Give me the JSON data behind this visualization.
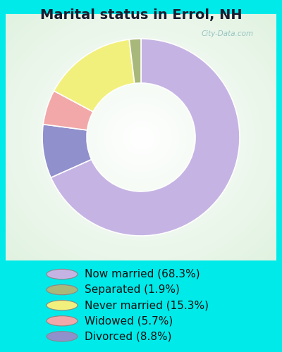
{
  "title": "Marital status in Errol, NH",
  "slices": [
    {
      "label": "Now married (68.3%)",
      "value": 68.3,
      "color": "#c5b4e3"
    },
    {
      "label": "Separated (1.9%)",
      "value": 1.9,
      "color": "#a8b87a"
    },
    {
      "label": "Never married (15.3%)",
      "value": 15.3,
      "color": "#f2f07c"
    },
    {
      "label": "Widowed (5.7%)",
      "value": 5.7,
      "color": "#f2a8a8"
    },
    {
      "label": "Divorced (8.8%)",
      "value": 8.8,
      "color": "#9090cc"
    }
  ],
  "pie_order": [
    0,
    4,
    3,
    2,
    1
  ],
  "background_outer": "#00eaea",
  "chart_bg_color": "#e8f5e8",
  "title_fontsize": 14,
  "legend_fontsize": 11,
  "watermark": "City-Data.com",
  "donut_width": 0.45,
  "start_angle": 90
}
